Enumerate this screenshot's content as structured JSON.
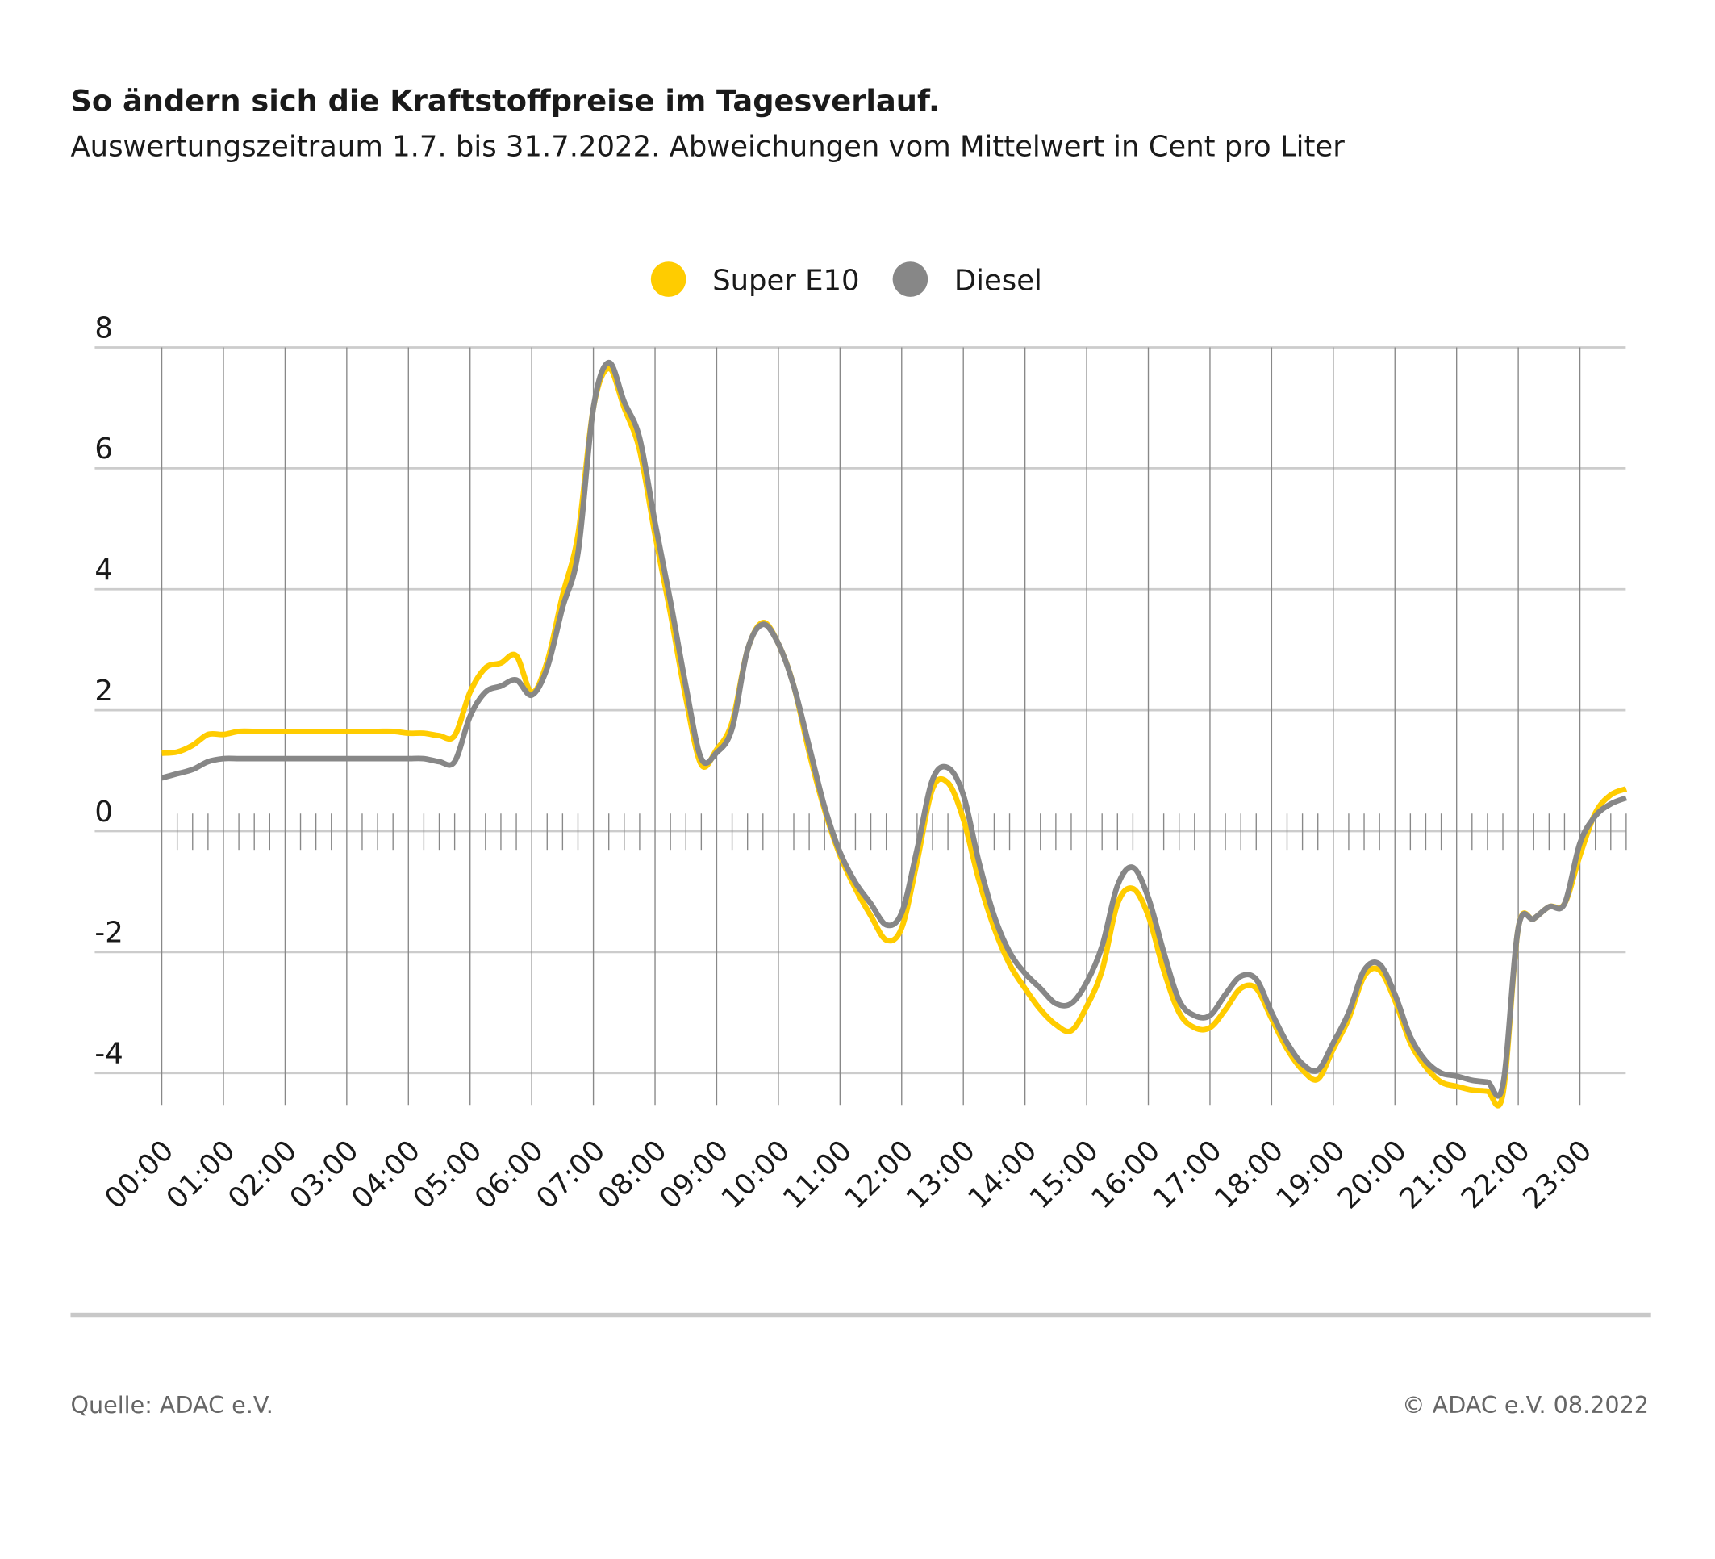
{
  "chart_data": {
    "type": "line",
    "title": "So ändern sich die Kraftstoffpreise im Tagesverlauf.",
    "subtitle": "Auswertungszeitraum 1.7. bis 31.7.2022. Abweichungen vom Mittelwert in Cent pro Liter",
    "xlabel": "",
    "ylabel": "",
    "ylim": [
      -4,
      8
    ],
    "yticks": [
      "8",
      "6",
      "4",
      "2",
      "0",
      "-2",
      "-4"
    ],
    "ytick_values": [
      8,
      6,
      4,
      2,
      0,
      -2,
      -4
    ],
    "xticks": [
      "00:00",
      "01:00",
      "02:00",
      "03:00",
      "04:00",
      "05:00",
      "06:00",
      "07:00",
      "08:00",
      "09:00",
      "10:00",
      "11:00",
      "12:00",
      "13:00",
      "14:00",
      "15:00",
      "16:00",
      "17:00",
      "18:00",
      "19:00",
      "20:00",
      "21:00",
      "22:00",
      "23:00"
    ],
    "x": [
      "00:00",
      "00:15",
      "00:30",
      "00:45",
      "01:00",
      "01:15",
      "01:30",
      "01:45",
      "02:00",
      "02:15",
      "02:30",
      "02:45",
      "03:00",
      "03:15",
      "03:30",
      "03:45",
      "04:00",
      "04:15",
      "04:30",
      "04:45",
      "05:00",
      "05:15",
      "05:30",
      "05:45",
      "06:00",
      "06:15",
      "06:30",
      "06:45",
      "07:00",
      "07:15",
      "07:30",
      "07:45",
      "08:00",
      "08:15",
      "08:30",
      "08:45",
      "09:00",
      "09:15",
      "09:30",
      "09:45",
      "10:00",
      "10:15",
      "10:30",
      "10:45",
      "11:00",
      "11:15",
      "11:30",
      "11:45",
      "12:00",
      "12:15",
      "12:30",
      "12:45",
      "13:00",
      "13:15",
      "13:30",
      "13:45",
      "14:00",
      "14:15",
      "14:30",
      "14:45",
      "15:00",
      "15:15",
      "15:30",
      "15:45",
      "16:00",
      "16:15",
      "16:30",
      "16:45",
      "17:00",
      "17:15",
      "17:30",
      "17:45",
      "18:00",
      "18:15",
      "18:30",
      "18:45",
      "19:00",
      "19:15",
      "19:30",
      "19:45",
      "20:00",
      "20:15",
      "20:30",
      "20:45",
      "21:00",
      "21:15",
      "21:30",
      "21:45",
      "22:00",
      "22:15",
      "22:30",
      "22:45",
      "23:00",
      "23:15",
      "23:30",
      "23:45"
    ],
    "series": [
      {
        "name": "Super E10",
        "color": "#FFCC00",
        "values": [
          1.29,
          1.31,
          1.42,
          1.6,
          1.6,
          1.65,
          1.65,
          1.65,
          1.65,
          1.65,
          1.65,
          1.65,
          1.65,
          1.65,
          1.65,
          1.65,
          1.62,
          1.62,
          1.58,
          1.58,
          2.3,
          2.7,
          2.78,
          2.9,
          2.3,
          2.8,
          3.9,
          4.9,
          7.0,
          7.65,
          7.0,
          6.3,
          4.9,
          3.6,
          2.2,
          1.1,
          1.35,
          1.8,
          3.0,
          3.45,
          3.1,
          2.4,
          1.3,
          0.35,
          -0.4,
          -0.95,
          -1.4,
          -1.8,
          -1.6,
          -0.5,
          0.7,
          0.8,
          0.2,
          -0.8,
          -1.6,
          -2.2,
          -2.6,
          -2.95,
          -3.2,
          -3.3,
          -2.9,
          -2.3,
          -1.2,
          -0.95,
          -1.4,
          -2.3,
          -3.0,
          -3.25,
          -3.25,
          -2.95,
          -2.6,
          -2.6,
          -3.1,
          -3.6,
          -3.95,
          -4.1,
          -3.6,
          -3.1,
          -2.4,
          -2.3,
          -2.8,
          -3.5,
          -3.9,
          -4.15,
          -4.22,
          -4.28,
          -4.3,
          -4.35,
          -1.6,
          -1.45,
          -1.25,
          -1.2,
          -0.4,
          0.3,
          0.6,
          0.7
        ]
      },
      {
        "name": "Diesel",
        "color": "#878787",
        "values": [
          0.88,
          0.95,
          1.02,
          1.15,
          1.2,
          1.2,
          1.2,
          1.2,
          1.2,
          1.2,
          1.2,
          1.2,
          1.2,
          1.2,
          1.2,
          1.2,
          1.2,
          1.2,
          1.15,
          1.15,
          1.9,
          2.3,
          2.4,
          2.5,
          2.25,
          2.7,
          3.7,
          4.6,
          7.0,
          7.75,
          7.1,
          6.5,
          5.1,
          3.8,
          2.4,
          1.2,
          1.3,
          1.7,
          3.0,
          3.42,
          3.1,
          2.4,
          1.4,
          0.4,
          -0.35,
          -0.85,
          -1.2,
          -1.55,
          -1.35,
          -0.3,
          0.85,
          1.05,
          0.6,
          -0.5,
          -1.4,
          -2.0,
          -2.35,
          -2.6,
          -2.85,
          -2.85,
          -2.5,
          -1.9,
          -0.9,
          -0.6,
          -1.1,
          -2.0,
          -2.8,
          -3.05,
          -3.05,
          -2.7,
          -2.4,
          -2.45,
          -3.0,
          -3.5,
          -3.85,
          -3.95,
          -3.5,
          -3.0,
          -2.3,
          -2.2,
          -2.7,
          -3.4,
          -3.8,
          -4.0,
          -4.05,
          -4.12,
          -4.15,
          -4.2,
          -1.6,
          -1.45,
          -1.25,
          -1.2,
          -0.2,
          0.25,
          0.45,
          0.55
        ]
      }
    ],
    "legend": {
      "placement": "top-center",
      "entries": [
        "Super E10",
        "Diesel"
      ]
    },
    "grid": true
  },
  "footer": {
    "source": "Quelle: ADAC e.V.",
    "copyright": "© ADAC e.V. 08.2022"
  }
}
